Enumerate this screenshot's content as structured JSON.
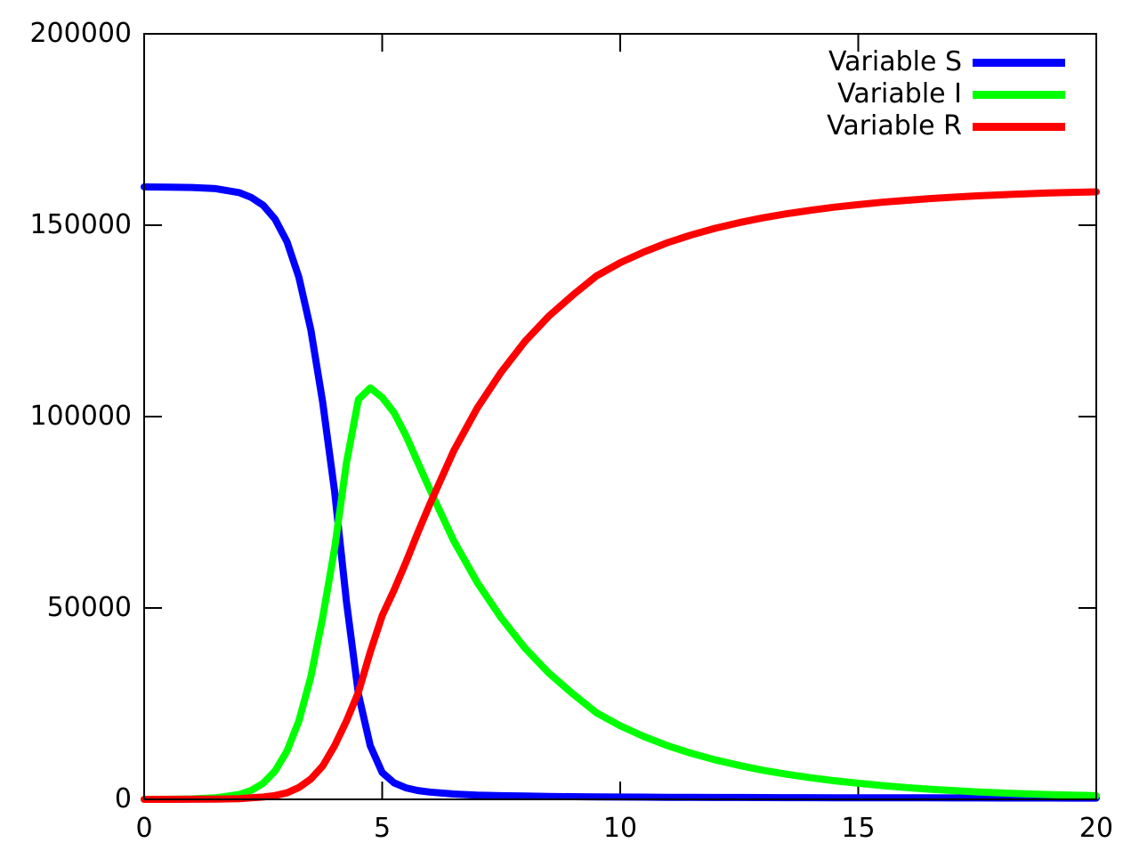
{
  "chart_data": {
    "type": "line",
    "title": "",
    "xlabel": "",
    "ylabel": "",
    "xlim": [
      0,
      20
    ],
    "ylim": [
      0,
      200000
    ],
    "x_ticks": [
      0,
      5,
      10,
      15,
      20
    ],
    "x_tick_labels": [
      "0",
      "5",
      "10",
      "15",
      "20"
    ],
    "y_ticks": [
      0,
      50000,
      100000,
      150000,
      200000
    ],
    "y_tick_labels": [
      "0",
      "50000",
      "100000",
      "150000",
      "200000"
    ],
    "grid": false,
    "legend_position": "top-right",
    "background_color": "#ffffff",
    "border_color": "#000000",
    "x": [
      0,
      0.5,
      1,
      1.5,
      2,
      2.25,
      2.5,
      2.75,
      3,
      3.25,
      3.5,
      3.75,
      4,
      4.25,
      4.5,
      4.75,
      5,
      5.25,
      5.5,
      5.75,
      6,
      6.5,
      7,
      7.5,
      8,
      8.5,
      9,
      9.5,
      10,
      10.5,
      11,
      11.5,
      12,
      12.5,
      13,
      13.5,
      14,
      14.5,
      15,
      15.5,
      16,
      16.5,
      17,
      17.5,
      18,
      18.5,
      19,
      19.5,
      20
    ],
    "series": [
      {
        "name": "Variable S",
        "color": "#0000ff",
        "values": [
          159990,
          159963,
          159870,
          159556,
          158520,
          157250,
          155200,
          151600,
          145700,
          136400,
          122700,
          103800,
          80500,
          51500,
          27500,
          14000,
          7000,
          4300,
          3000,
          2300,
          1900,
          1400,
          1100,
          950,
          850,
          750,
          700,
          650,
          600,
          570,
          540,
          520,
          500,
          480,
          460,
          450,
          440,
          430,
          420,
          410,
          400,
          390,
          380,
          370,
          360,
          350,
          340,
          330,
          320
        ]
      },
      {
        "name": "Variable I",
        "color": "#00ff00",
        "values": [
          10,
          34,
          115,
          390,
          1290,
          2350,
          4200,
          7400,
          12600,
          20500,
          32000,
          47500,
          65500,
          88000,
          104500,
          107500,
          105000,
          101000,
          95000,
          88000,
          81000,
          67600,
          56600,
          47400,
          39500,
          33000,
          27600,
          22600,
          19200,
          16400,
          14000,
          12000,
          10300,
          8850,
          7600,
          6550,
          5650,
          4850,
          4200,
          3600,
          3100,
          2650,
          2300,
          1950,
          1700,
          1450,
          1250,
          1100,
          950
        ]
      },
      {
        "name": "Variable R",
        "color": "#ff0000",
        "values": [
          0,
          3,
          15,
          54,
          190,
          400,
          600,
          1000,
          1700,
          3100,
          5300,
          8700,
          14000,
          20500,
          28000,
          38500,
          48000,
          54700,
          62000,
          69700,
          77100,
          91000,
          102300,
          111650,
          119650,
          126250,
          131700,
          136750,
          140200,
          143030,
          145460,
          147480,
          149200,
          150670,
          151940,
          153000,
          153910,
          154720,
          155380,
          155990,
          156500,
          156960,
          157320,
          157680,
          157940,
          158200,
          158410,
          158570,
          158730
        ]
      }
    ]
  },
  "legend": {
    "items": [
      {
        "label": "Variable S",
        "color": "#0000ff"
      },
      {
        "label": "Variable I",
        "color": "#00ff00"
      },
      {
        "label": "Variable R",
        "color": "#ff0000"
      }
    ]
  }
}
